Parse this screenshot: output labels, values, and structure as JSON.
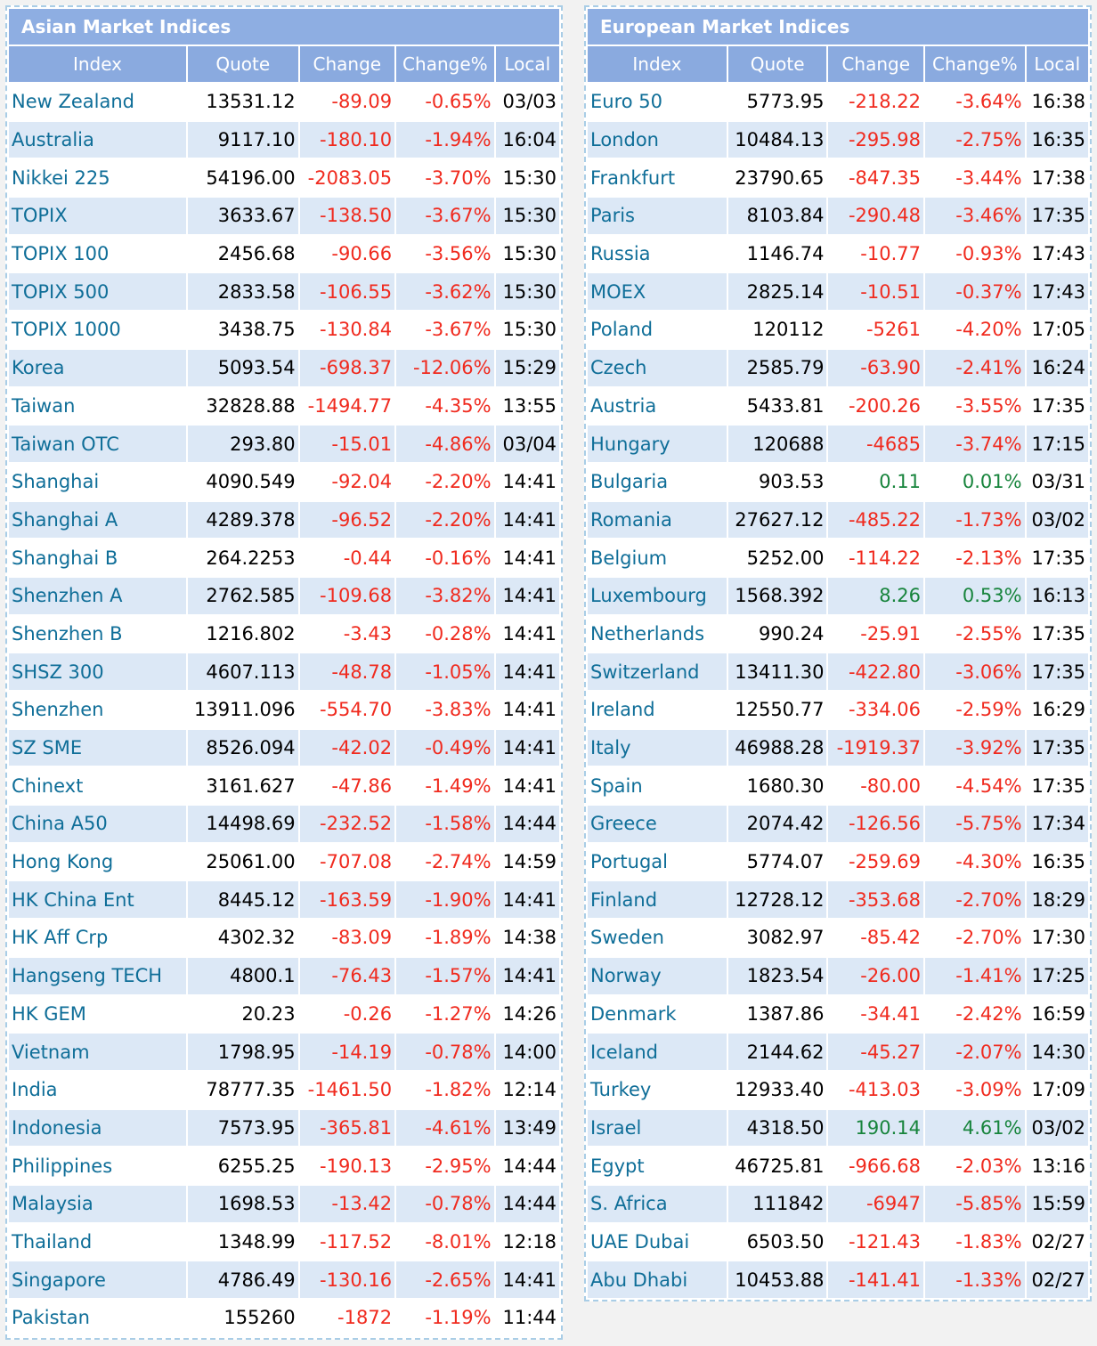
{
  "asian": {
    "title": "Asian Market Indices",
    "header": [
      "Index",
      "Quote",
      "Change",
      "Change%",
      "Local"
    ],
    "rows": [
      [
        "New Zealand",
        "13531.12",
        "-89.09",
        "-0.65%",
        "03/03"
      ],
      [
        "Australia",
        "9117.10",
        "-180.10",
        "-1.94%",
        "16:04"
      ],
      [
        "Nikkei 225",
        "54196.00",
        "-2083.05",
        "-3.70%",
        "15:30"
      ],
      [
        "TOPIX",
        "3633.67",
        "-138.50",
        "-3.67%",
        "15:30"
      ],
      [
        "TOPIX 100",
        "2456.68",
        "-90.66",
        "-3.56%",
        "15:30"
      ],
      [
        "TOPIX 500",
        "2833.58",
        "-106.55",
        "-3.62%",
        "15:30"
      ],
      [
        "TOPIX 1000",
        "3438.75",
        "-130.84",
        "-3.67%",
        "15:30"
      ],
      [
        "Korea",
        "5093.54",
        "-698.37",
        "-12.06%",
        "15:29"
      ],
      [
        "Taiwan",
        "32828.88",
        "-1494.77",
        "-4.35%",
        "13:55"
      ],
      [
        "Taiwan OTC",
        "293.80",
        "-15.01",
        "-4.86%",
        "03/04"
      ],
      [
        "Shanghai",
        "4090.549",
        "-92.04",
        "-2.20%",
        "14:41"
      ],
      [
        "Shanghai A",
        "4289.378",
        "-96.52",
        "-2.20%",
        "14:41"
      ],
      [
        "Shanghai B",
        "264.2253",
        "-0.44",
        "-0.16%",
        "14:41"
      ],
      [
        "Shenzhen A",
        "2762.585",
        "-109.68",
        "-3.82%",
        "14:41"
      ],
      [
        "Shenzhen B",
        "1216.802",
        "-3.43",
        "-0.28%",
        "14:41"
      ],
      [
        "SHSZ 300",
        "4607.113",
        "-48.78",
        "-1.05%",
        "14:41"
      ],
      [
        "Shenzhen",
        "13911.096",
        "-554.70",
        "-3.83%",
        "14:41"
      ],
      [
        "SZ SME",
        "8526.094",
        "-42.02",
        "-0.49%",
        "14:41"
      ],
      [
        "Chinext",
        "3161.627",
        "-47.86",
        "-1.49%",
        "14:41"
      ],
      [
        "China A50",
        "14498.69",
        "-232.52",
        "-1.58%",
        "14:44"
      ],
      [
        "Hong Kong",
        "25061.00",
        "-707.08",
        "-2.74%",
        "14:59"
      ],
      [
        "HK China Ent",
        "8445.12",
        "-163.59",
        "-1.90%",
        "14:41"
      ],
      [
        "HK Aff Crp",
        "4302.32",
        "-83.09",
        "-1.89%",
        "14:38"
      ],
      [
        "Hangseng TECH",
        "4800.1",
        "-76.43",
        "-1.57%",
        "14:41"
      ],
      [
        "HK GEM",
        "20.23",
        "-0.26",
        "-1.27%",
        "14:26"
      ],
      [
        "Vietnam",
        "1798.95",
        "-14.19",
        "-0.78%",
        "14:00"
      ],
      [
        "India",
        "78777.35",
        "-1461.50",
        "-1.82%",
        "12:14"
      ],
      [
        "Indonesia",
        "7573.95",
        "-365.81",
        "-4.61%",
        "13:49"
      ],
      [
        "Philippines",
        "6255.25",
        "-190.13",
        "-2.95%",
        "14:44"
      ],
      [
        "Malaysia",
        "1698.53",
        "-13.42",
        "-0.78%",
        "14:44"
      ],
      [
        "Thailand",
        "1348.99",
        "-117.52",
        "-8.01%",
        "12:18"
      ],
      [
        "Singapore",
        "4786.49",
        "-130.16",
        "-2.65%",
        "14:41"
      ],
      [
        "Pakistan",
        "155260",
        "-1872",
        "-1.19%",
        "11:44"
      ]
    ]
  },
  "european": {
    "title": "European Market Indices",
    "header": [
      "Index",
      "Quote",
      "Change",
      "Change%",
      "Local"
    ],
    "rows": [
      [
        "Euro 50",
        "5773.95",
        "-218.22",
        "-3.64%",
        "16:38"
      ],
      [
        "London",
        "10484.13",
        "-295.98",
        "-2.75%",
        "16:35"
      ],
      [
        "Frankfurt",
        "23790.65",
        "-847.35",
        "-3.44%",
        "17:38"
      ],
      [
        "Paris",
        "8103.84",
        "-290.48",
        "-3.46%",
        "17:35"
      ],
      [
        "Russia",
        "1146.74",
        "-10.77",
        "-0.93%",
        "17:43"
      ],
      [
        "MOEX",
        "2825.14",
        "-10.51",
        "-0.37%",
        "17:43"
      ],
      [
        "Poland",
        "120112",
        "-5261",
        "-4.20%",
        "17:05"
      ],
      [
        "Czech",
        "2585.79",
        "-63.90",
        "-2.41%",
        "16:24"
      ],
      [
        "Austria",
        "5433.81",
        "-200.26",
        "-3.55%",
        "17:35"
      ],
      [
        "Hungary",
        "120688",
        "-4685",
        "-3.74%",
        "17:15"
      ],
      [
        "Bulgaria",
        "903.53",
        "0.11",
        "0.01%",
        "03/31"
      ],
      [
        "Romania",
        "27627.12",
        "-485.22",
        "-1.73%",
        "03/02"
      ],
      [
        "Belgium",
        "5252.00",
        "-114.22",
        "-2.13%",
        "17:35"
      ],
      [
        "Luxembourg",
        "1568.392",
        "8.26",
        "0.53%",
        "16:13"
      ],
      [
        "Netherlands",
        "990.24",
        "-25.91",
        "-2.55%",
        "17:35"
      ],
      [
        "Switzerland",
        "13411.30",
        "-422.80",
        "-3.06%",
        "17:35"
      ],
      [
        "Ireland",
        "12550.77",
        "-334.06",
        "-2.59%",
        "16:29"
      ],
      [
        "Italy",
        "46988.28",
        "-1919.37",
        "-3.92%",
        "17:35"
      ],
      [
        "Spain",
        "1680.30",
        "-80.00",
        "-4.54%",
        "17:35"
      ],
      [
        "Greece",
        "2074.42",
        "-126.56",
        "-5.75%",
        "17:34"
      ],
      [
        "Portugal",
        "5774.07",
        "-259.69",
        "-4.30%",
        "16:35"
      ],
      [
        "Finland",
        "12728.12",
        "-353.68",
        "-2.70%",
        "18:29"
      ],
      [
        "Sweden",
        "3082.97",
        "-85.42",
        "-2.70%",
        "17:30"
      ],
      [
        "Norway",
        "1823.54",
        "-26.00",
        "-1.41%",
        "17:25"
      ],
      [
        "Denmark",
        "1387.86",
        "-34.41",
        "-2.42%",
        "16:59"
      ],
      [
        "Iceland",
        "2144.62",
        "-45.27",
        "-2.07%",
        "14:30"
      ],
      [
        "Turkey",
        "12933.40",
        "-413.03",
        "-3.09%",
        "17:09"
      ],
      [
        "Israel",
        "4318.50",
        "190.14",
        "4.61%",
        "03/02"
      ],
      [
        "Egypt",
        "46725.81",
        "-966.68",
        "-2.03%",
        "13:16"
      ],
      [
        "S. Africa",
        "111842",
        "-6947",
        "-5.85%",
        "15:59"
      ],
      [
        "UAE Dubai",
        "6503.50",
        "-121.43",
        "-1.83%",
        "02/27"
      ],
      [
        "Abu Dhabi",
        "10453.88",
        "-141.41",
        "-1.33%",
        "02/27"
      ]
    ]
  }
}
